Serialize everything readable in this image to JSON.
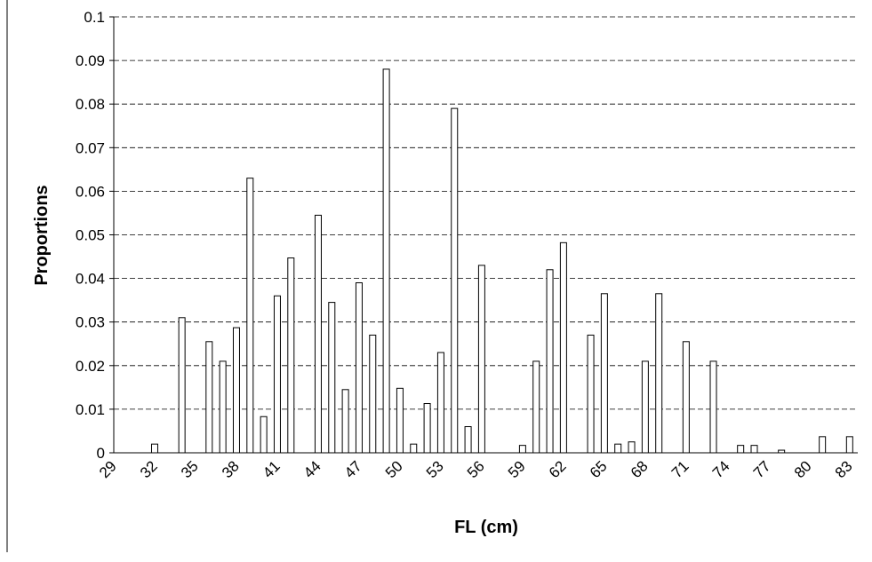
{
  "chart_data": {
    "type": "bar",
    "x_label": "FL (cm)",
    "y_label": "Proportions",
    "categories": [
      "29",
      null,
      null,
      "32",
      null,
      null,
      "35",
      null,
      null,
      "38",
      null,
      null,
      "41",
      null,
      null,
      "44",
      null,
      null,
      "47",
      null,
      null,
      "50",
      null,
      null,
      "53",
      null,
      null,
      "56",
      null,
      null,
      "59",
      null,
      null,
      "62",
      null,
      null,
      "65",
      null,
      null,
      "68",
      null,
      null,
      "71",
      null,
      null,
      "74",
      null,
      null,
      "77",
      null,
      null,
      "80",
      null,
      null,
      "83"
    ],
    "values": [
      0,
      0,
      0,
      0.002,
      0,
      0.031,
      0,
      0.0255,
      0.021,
      0.0287,
      0.063,
      0.0083,
      0.036,
      0.0447,
      0,
      0.0545,
      0.0345,
      0.0145,
      0.039,
      0.027,
      0.088,
      0.0148,
      0.002,
      0.0113,
      0.023,
      0.079,
      0.006,
      0.043,
      0,
      0,
      0.0017,
      0.021,
      0.042,
      0.0482,
      0,
      0.027,
      0.0365,
      0.002,
      0.0025,
      0.021,
      0.0365,
      0,
      0.0255,
      0,
      0.021,
      0,
      0.0017,
      0.0017,
      0,
      0.0006,
      0,
      0,
      0.0037,
      0,
      0.0037
    ],
    "color": "#ffffff",
    "ylim": [
      0,
      0.1
    ],
    "yticks": [
      0,
      0.01,
      0.02,
      0.03,
      0.04,
      0.05,
      0.06,
      0.07,
      0.08,
      0.09,
      0.1
    ],
    "grid": true
  }
}
